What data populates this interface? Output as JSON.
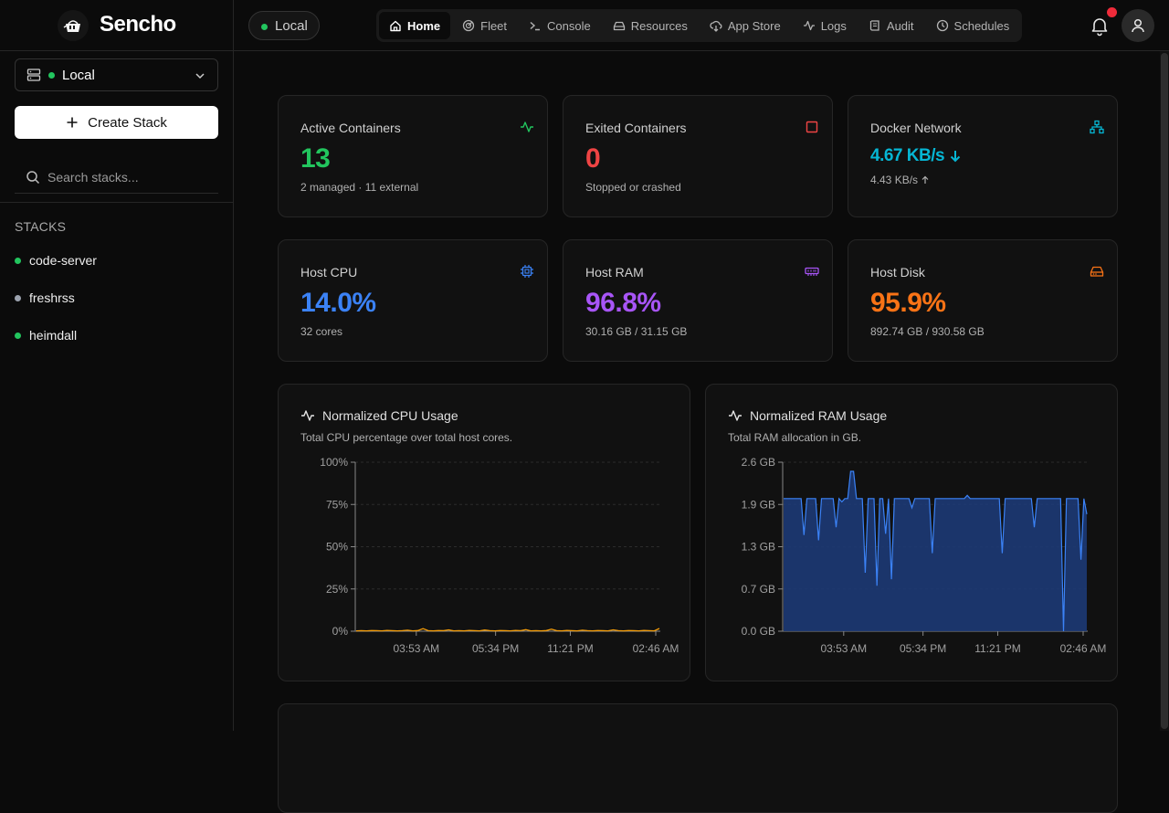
{
  "app": {
    "name": "Sencho"
  },
  "topbar": {
    "node": "Local",
    "nav": [
      {
        "label": "Home",
        "icon": "home-icon",
        "active": true
      },
      {
        "label": "Fleet",
        "icon": "radar-icon"
      },
      {
        "label": "Console",
        "icon": "terminal-icon"
      },
      {
        "label": "Resources",
        "icon": "hard-drive-icon"
      },
      {
        "label": "App Store",
        "icon": "cloud-download-icon"
      },
      {
        "label": "Logs",
        "icon": "activity-icon"
      },
      {
        "label": "Audit",
        "icon": "scroll-icon"
      },
      {
        "label": "Schedules",
        "icon": "clock-icon"
      }
    ]
  },
  "sidebar": {
    "node_select": "Local",
    "create_label": "Create Stack",
    "search_placeholder": "Search stacks...",
    "stacks_title": "STACKS",
    "stacks": [
      {
        "name": "code-server",
        "status": "running",
        "color": "#22c55e"
      },
      {
        "name": "freshrss",
        "status": "stopped",
        "color": "#9ca3af"
      },
      {
        "name": "heimdall",
        "status": "running",
        "color": "#22c55e"
      }
    ]
  },
  "stats": {
    "active": {
      "title": "Active Containers",
      "value": "13",
      "sub": "2 managed · 11 external",
      "color": "#22c55e"
    },
    "exited": {
      "title": "Exited Containers",
      "value": "0",
      "sub": "Stopped or crashed",
      "color": "#ef4444"
    },
    "network": {
      "title": "Docker Network",
      "value": "4.67 KB/s",
      "sub": "4.43 KB/s",
      "color": "#06b6d4"
    },
    "cpu": {
      "title": "Host CPU",
      "value": "14.0%",
      "sub": "32 cores",
      "color": "#3b82f6"
    },
    "ram": {
      "title": "Host RAM",
      "value": "96.8%",
      "sub": "30.16 GB / 31.15 GB",
      "color": "#a855f7"
    },
    "disk": {
      "title": "Host Disk",
      "value": "95.9%",
      "sub": "892.74 GB / 930.58 GB",
      "color": "#f97316"
    }
  },
  "chart_data": [
    {
      "type": "line",
      "title": "Normalized CPU Usage",
      "subtitle": "Total CPU percentage over total host cores.",
      "ylim": [
        0,
        100
      ],
      "yticks": [
        "100%",
        "75%",
        "50%",
        "25%",
        "0%"
      ],
      "xticks": [
        "03:53 AM",
        "05:34 PM",
        "11:21 PM",
        "02:46 AM"
      ],
      "color": "#f59e0b",
      "series": [
        {
          "values": [
            0.2,
            0.3,
            0.2,
            0.4,
            0.3,
            0.2,
            0.5,
            0.3,
            0.2,
            0.3,
            0.6,
            0.2,
            0.4,
            1.5,
            0.3,
            0.2,
            0.4,
            0.3,
            0.8,
            0.2,
            0.3,
            0.2,
            0.5,
            0.3,
            0.2,
            0.7,
            0.3,
            0.2,
            0.4,
            0.3,
            0.2,
            0.5,
            0.3,
            0.9,
            0.2,
            0.3,
            0.2,
            0.4,
            1.2,
            0.3,
            0.2,
            0.5,
            0.3,
            0.2,
            0.6,
            0.3,
            0.2,
            0.4,
            0.3,
            0.2,
            0.8,
            0.3,
            0.2,
            0.4,
            0.3,
            0.2,
            0.5,
            0.3,
            0.2,
            1.6
          ]
        }
      ]
    },
    {
      "type": "area",
      "title": "Normalized RAM Usage",
      "subtitle": "Total RAM allocation in GB.",
      "ylim": [
        0,
        2.6
      ],
      "yticks": [
        "2.6 GB",
        "1.9 GB",
        "1.3 GB",
        "0.7 GB",
        "0.0 GB"
      ],
      "xticks": [
        "03:53 AM",
        "05:34 PM",
        "11:21 PM",
        "02:46 AM"
      ],
      "color": "#3b82f6",
      "series": [
        {
          "values": [
            2.04,
            2.04,
            2.04,
            2.04,
            2.04,
            2.04,
            2.04,
            1.48,
            2.04,
            2.04,
            2.04,
            2.04,
            1.4,
            2.04,
            2.04,
            2.04,
            2.04,
            2.04,
            1.6,
            2.04,
            1.99,
            2.04,
            2.04,
            2.46,
            2.46,
            2.04,
            2.04,
            2.04,
            0.9,
            2.04,
            2.04,
            2.04,
            0.7,
            2.04,
            2.04,
            1.5,
            2.04,
            0.8,
            2.04,
            2.04,
            2.04,
            2.04,
            2.04,
            2.04,
            1.9,
            2.04,
            2.04,
            2.04,
            2.04,
            2.04,
            2.04,
            1.2,
            2.04,
            2.04,
            2.04,
            2.04,
            2.04,
            2.04,
            2.04,
            2.04,
            2.04,
            2.04,
            2.04,
            2.09,
            2.04,
            2.04,
            2.04,
            2.04,
            2.04,
            2.04,
            2.04,
            2.04,
            2.04,
            2.04,
            2.04,
            1.2,
            2.04,
            2.04,
            2.04,
            2.04,
            2.04,
            2.04,
            2.04,
            2.04,
            2.04,
            2.04,
            1.6,
            2.04,
            2.04,
            2.04,
            2.04,
            2.04,
            2.04,
            2.04,
            2.04,
            2.04,
            0.0,
            2.04,
            2.04,
            2.04,
            2.04,
            2.04,
            1.1,
            2.04,
            1.8
          ]
        }
      ]
    }
  ]
}
